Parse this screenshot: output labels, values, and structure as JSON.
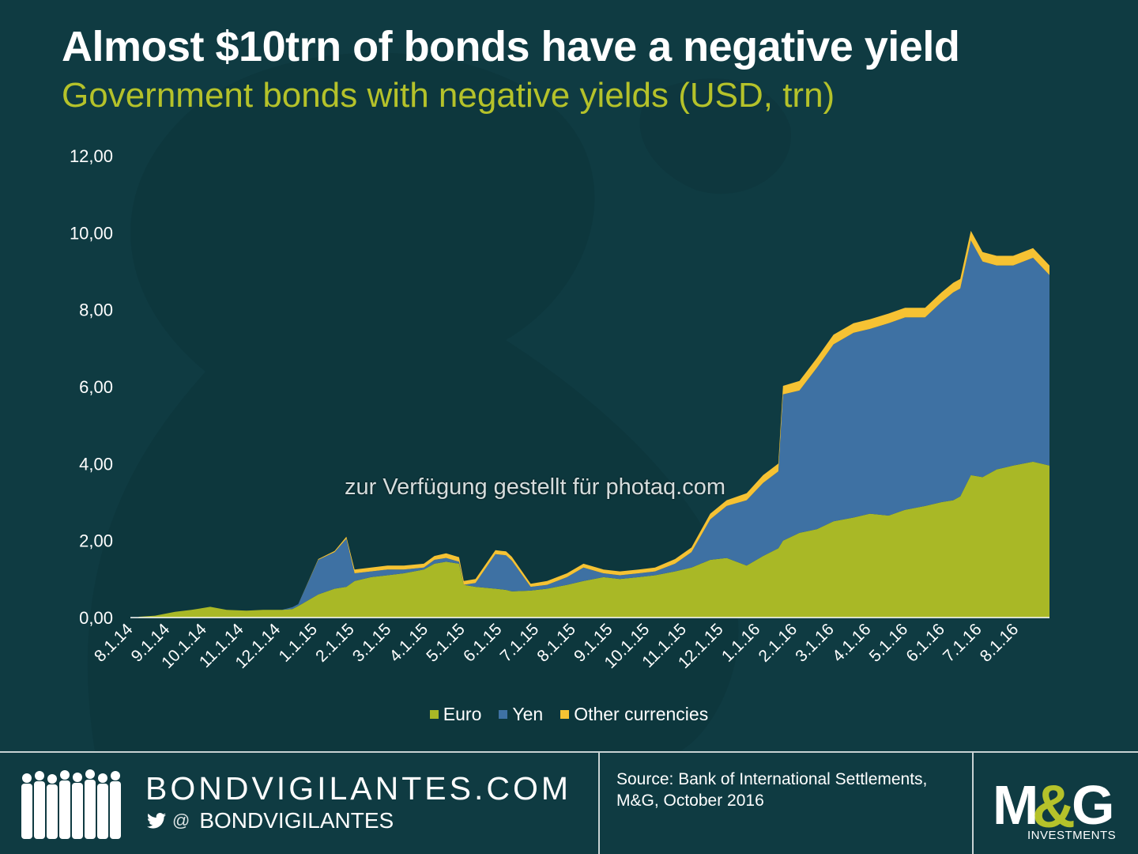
{
  "header": {
    "title": "Almost $10trn of bonds have a negative yield",
    "subtitle": "Government bonds with negative yields (USD, trn)"
  },
  "chart_data": {
    "type": "area",
    "stacked": true,
    "title": "Almost $10trn of bonds have a negative yield",
    "subtitle": "Government bonds with negative yields (USD, trn)",
    "ylim": [
      0,
      12
    ],
    "yticks": [
      "0,00",
      "2,00",
      "4,00",
      "6,00",
      "8,00",
      "10,00",
      "12,00"
    ],
    "grid": false,
    "legend_position": "bottom",
    "xtick_labels": [
      "8.1.14",
      "9.1.14",
      "10.1.14",
      "11.1.14",
      "12.1.14",
      "1.1.15",
      "2.1.15",
      "3.1.15",
      "4.1.15",
      "5.1.15",
      "6.1.15",
      "7.1.15",
      "8.1.15",
      "9.1.15",
      "10.1.15",
      "11.1.15",
      "12.1.15",
      "1.1.16",
      "2.1.16",
      "3.1.16",
      "4.1.16",
      "5.1.16",
      "6.1.16",
      "7.1.16",
      "8.1.16"
    ],
    "x": [
      "2014-08-01",
      "2014-08-15",
      "2014-09-01",
      "2014-09-15",
      "2014-10-01",
      "2014-10-15",
      "2014-11-01",
      "2014-11-15",
      "2014-12-01",
      "2014-12-10",
      "2014-12-15",
      "2015-01-01",
      "2015-01-15",
      "2015-01-25",
      "2015-02-01",
      "2015-02-15",
      "2015-03-01",
      "2015-03-15",
      "2015-04-01",
      "2015-04-10",
      "2015-04-20",
      "2015-05-01",
      "2015-05-05",
      "2015-05-15",
      "2015-06-01",
      "2015-06-10",
      "2015-06-15",
      "2015-07-01",
      "2015-07-15",
      "2015-08-01",
      "2015-08-15",
      "2015-09-01",
      "2015-09-15",
      "2015-10-01",
      "2015-10-15",
      "2015-11-01",
      "2015-11-15",
      "2015-12-01",
      "2015-12-15",
      "2016-01-01",
      "2016-01-15",
      "2016-01-28",
      "2016-02-01",
      "2016-02-15",
      "2016-03-01",
      "2016-03-15",
      "2016-04-01",
      "2016-04-15",
      "2016-05-01",
      "2016-05-15",
      "2016-06-01",
      "2016-06-15",
      "2016-06-25",
      "2016-07-01",
      "2016-07-10",
      "2016-07-20",
      "2016-08-01",
      "2016-08-15",
      "2016-09-01",
      "2016-09-15"
    ],
    "series": [
      {
        "name": "Euro",
        "color": "#a9b826",
        "values": [
          0.02,
          0.05,
          0.15,
          0.2,
          0.28,
          0.2,
          0.18,
          0.2,
          0.2,
          0.22,
          0.3,
          0.6,
          0.75,
          0.8,
          0.95,
          1.05,
          1.1,
          1.15,
          1.25,
          1.4,
          1.45,
          1.4,
          0.85,
          0.8,
          0.75,
          0.72,
          0.68,
          0.7,
          0.75,
          0.85,
          0.95,
          1.05,
          1.0,
          1.05,
          1.1,
          1.2,
          1.3,
          1.5,
          1.55,
          1.35,
          1.6,
          1.8,
          2.0,
          2.2,
          2.3,
          2.5,
          2.6,
          2.7,
          2.65,
          2.8,
          2.9,
          3.0,
          3.05,
          3.15,
          3.7,
          3.65,
          3.85,
          3.95,
          4.05,
          3.95
        ]
      },
      {
        "name": "Yen",
        "color": "#3e71a3",
        "values": [
          0,
          0,
          0,
          0,
          0,
          0,
          0,
          0,
          0,
          0.05,
          0.05,
          0.9,
          0.95,
          1.25,
          0.2,
          0.15,
          0.15,
          0.1,
          0.05,
          0.1,
          0.1,
          0.05,
          0,
          0.1,
          0.9,
          0.9,
          0.8,
          0.1,
          0.1,
          0.2,
          0.35,
          0.1,
          0.1,
          0.1,
          0.1,
          0.2,
          0.4,
          1.05,
          1.35,
          1.7,
          1.9,
          2.0,
          3.8,
          3.7,
          4.2,
          4.6,
          4.8,
          4.8,
          5.0,
          5.0,
          4.9,
          5.2,
          5.4,
          5.4,
          6.1,
          5.6,
          5.3,
          5.2,
          5.3,
          4.95
        ]
      },
      {
        "name": "Other currencies",
        "color": "#f6c233",
        "values": [
          0,
          0,
          0,
          0,
          0,
          0,
          0,
          0,
          0,
          0,
          0,
          0.02,
          0.03,
          0.05,
          0.1,
          0.1,
          0.1,
          0.1,
          0.1,
          0.1,
          0.12,
          0.12,
          0.1,
          0.1,
          0.1,
          0.1,
          0.1,
          0.08,
          0.1,
          0.1,
          0.1,
          0.1,
          0.1,
          0.1,
          0.1,
          0.12,
          0.12,
          0.15,
          0.15,
          0.18,
          0.2,
          0.2,
          0.22,
          0.25,
          0.25,
          0.25,
          0.25,
          0.25,
          0.25,
          0.25,
          0.25,
          0.25,
          0.25,
          0.25,
          0.25,
          0.25,
          0.25,
          0.25,
          0.25,
          0.25
        ]
      }
    ]
  },
  "legend": {
    "items": [
      {
        "label": "Euro",
        "color": "#a9b826"
      },
      {
        "label": "Yen",
        "color": "#3e71a3"
      },
      {
        "label": "Other currencies",
        "color": "#f6c233"
      }
    ]
  },
  "watermark": "zur Verfügung gestellt für photaq.com",
  "footer": {
    "site": "BONDVIGILANTES.COM",
    "at": "@",
    "handle": "BONDVIGILANTES",
    "source": "Source: Bank of International Settlements, M&G, October 2016",
    "logo": "M&G",
    "logo_sub": "INVESTMENTS"
  },
  "colors": {
    "background": "#0f3b42",
    "title": "#ffffff",
    "subtitle": "#b5c22a",
    "euro": "#a9b826",
    "yen": "#3e71a3",
    "other": "#f6c233"
  },
  "icons": [
    "people-silhouette-icon",
    "twitter-bird-icon"
  ]
}
